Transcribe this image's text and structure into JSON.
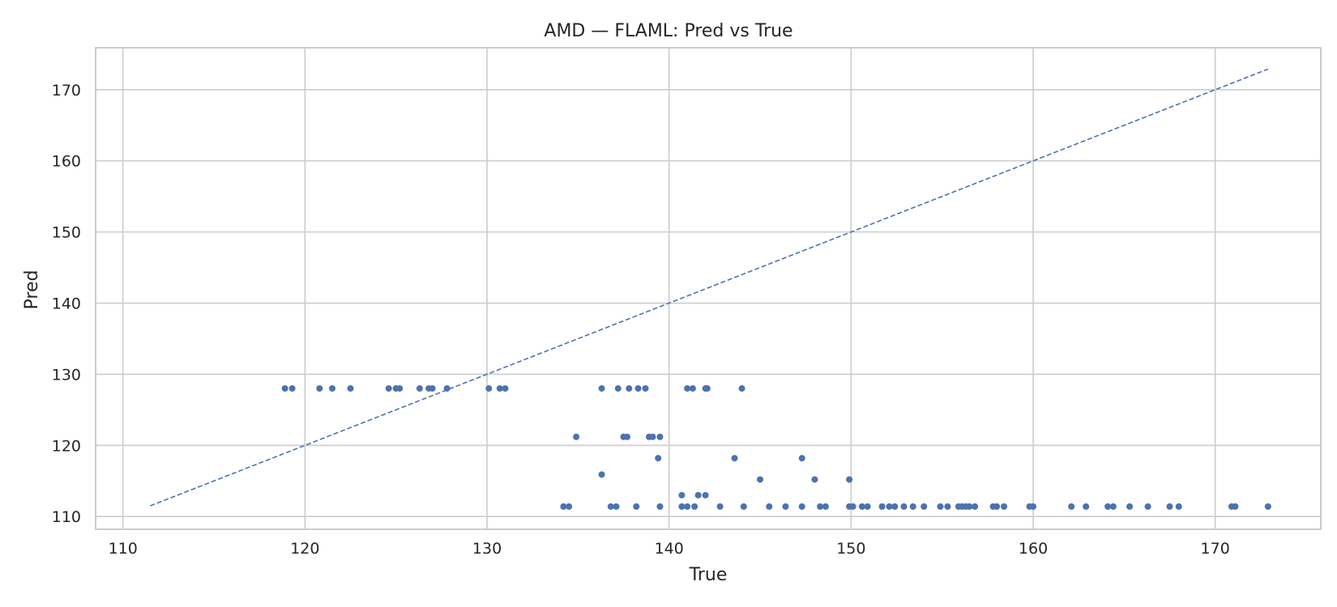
{
  "chart_data": {
    "type": "scatter",
    "title": "AMD — FLAML: Pred vs True",
    "xlabel": "True",
    "ylabel": "Pred",
    "xlim": [
      108.5,
      175.8
    ],
    "ylim": [
      108.2,
      175.9
    ],
    "xticks": [
      110,
      120,
      130,
      140,
      150,
      160,
      170
    ],
    "yticks": [
      110,
      120,
      130,
      140,
      150,
      160,
      170
    ],
    "grid": true,
    "colors": {
      "points": "#4c72b0",
      "reference": "#4c72b0",
      "grid": "#cccccc",
      "frame": "#cccccc"
    },
    "reference_line": {
      "style": "dashed",
      "start": [
        111.5,
        111.5
      ],
      "end": [
        172.9,
        172.9
      ]
    },
    "series": [
      {
        "points": [
          [
            118.9,
            128.0
          ],
          [
            119.3,
            128.0
          ],
          [
            120.8,
            128.0
          ],
          [
            121.5,
            128.0
          ],
          [
            122.5,
            128.0
          ],
          [
            124.6,
            128.0
          ],
          [
            125.0,
            128.0
          ],
          [
            125.2,
            128.0
          ],
          [
            126.3,
            128.0
          ],
          [
            126.8,
            128.0
          ],
          [
            127.0,
            128.0
          ],
          [
            127.8,
            128.0
          ],
          [
            130.1,
            128.0
          ],
          [
            130.7,
            128.0
          ],
          [
            131.0,
            128.0
          ],
          [
            136.3,
            128.0
          ],
          [
            137.2,
            128.0
          ],
          [
            137.8,
            128.0
          ],
          [
            138.3,
            128.0
          ],
          [
            138.7,
            128.0
          ],
          [
            141.0,
            128.0
          ],
          [
            141.3,
            128.0
          ],
          [
            142.0,
            128.0
          ],
          [
            142.1,
            128.0
          ],
          [
            144.0,
            128.0
          ],
          [
            134.9,
            121.2
          ],
          [
            137.5,
            121.2
          ],
          [
            137.7,
            121.2
          ],
          [
            138.9,
            121.2
          ],
          [
            139.1,
            121.2
          ],
          [
            139.5,
            121.2
          ],
          [
            139.4,
            118.2
          ],
          [
            143.6,
            118.2
          ],
          [
            147.3,
            118.2
          ],
          [
            136.3,
            115.9
          ],
          [
            145.0,
            115.2
          ],
          [
            148.0,
            115.2
          ],
          [
            149.9,
            115.2
          ],
          [
            140.7,
            113.0
          ],
          [
            141.6,
            113.0
          ],
          [
            142.0,
            113.0
          ],
          [
            134.2,
            111.4
          ],
          [
            134.5,
            111.4
          ],
          [
            136.8,
            111.4
          ],
          [
            137.1,
            111.4
          ],
          [
            138.2,
            111.4
          ],
          [
            139.5,
            111.4
          ],
          [
            140.7,
            111.4
          ],
          [
            141.0,
            111.4
          ],
          [
            141.4,
            111.4
          ],
          [
            142.8,
            111.4
          ],
          [
            144.1,
            111.4
          ],
          [
            145.5,
            111.4
          ],
          [
            146.4,
            111.4
          ],
          [
            147.3,
            111.4
          ],
          [
            148.3,
            111.4
          ],
          [
            148.6,
            111.4
          ],
          [
            149.9,
            111.4
          ],
          [
            150.1,
            111.4
          ],
          [
            150.6,
            111.4
          ],
          [
            150.9,
            111.4
          ],
          [
            151.7,
            111.4
          ],
          [
            152.1,
            111.4
          ],
          [
            152.4,
            111.4
          ],
          [
            152.9,
            111.4
          ],
          [
            153.4,
            111.4
          ],
          [
            154.0,
            111.4
          ],
          [
            154.9,
            111.4
          ],
          [
            155.3,
            111.4
          ],
          [
            155.9,
            111.4
          ],
          [
            156.1,
            111.4
          ],
          [
            156.3,
            111.4
          ],
          [
            156.5,
            111.4
          ],
          [
            156.8,
            111.4
          ],
          [
            157.8,
            111.4
          ],
          [
            158.0,
            111.4
          ],
          [
            158.4,
            111.4
          ],
          [
            159.8,
            111.4
          ],
          [
            160.0,
            111.4
          ],
          [
            162.1,
            111.4
          ],
          [
            162.9,
            111.4
          ],
          [
            164.1,
            111.4
          ],
          [
            164.4,
            111.4
          ],
          [
            165.3,
            111.4
          ],
          [
            166.3,
            111.4
          ],
          [
            167.5,
            111.4
          ],
          [
            168.0,
            111.4
          ],
          [
            170.9,
            111.4
          ],
          [
            171.1,
            111.4
          ],
          [
            172.9,
            111.4
          ]
        ]
      }
    ]
  }
}
